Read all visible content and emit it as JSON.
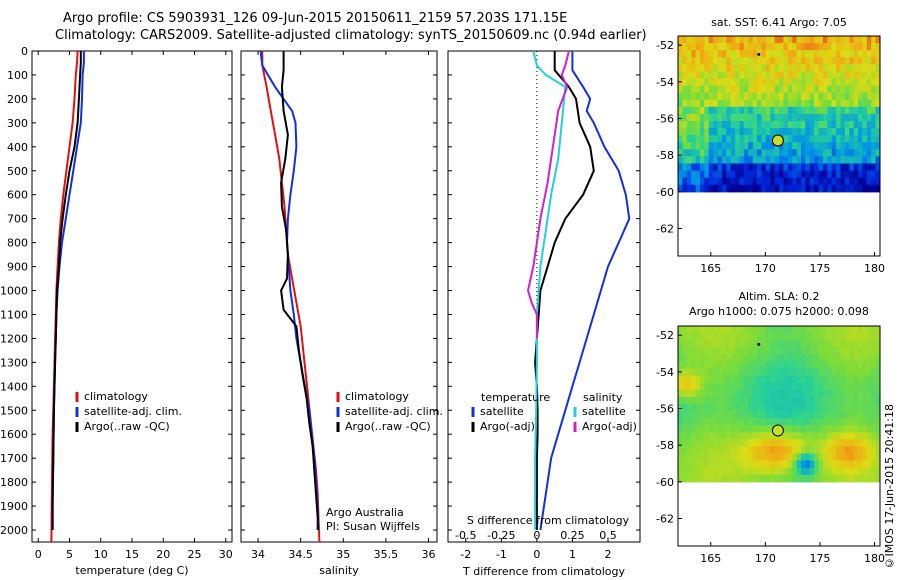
{
  "header": {
    "line1": "Argo profile: CS 5903931_126 09-Jun-2015 20150611_2159 57.203S 171.15E",
    "line2": "Climatology: CARS2009. Satellite-adjusted climatology: synTS_20150609.nc (0.94d earlier)"
  },
  "credit": "©IMOS 17-Jun-2015 20:41:18",
  "colors": {
    "climatology": "#e01010",
    "satellite": "#1030e0",
    "argo": "#000000",
    "sal_satellite": "#20d0e0",
    "sal_argo": "#d020d0"
  },
  "chart_data": [
    {
      "type": "line",
      "id": "temperature",
      "xlabel": "temperature (deg C)",
      "ylabel": "",
      "xlim": [
        -1,
        31
      ],
      "ylim": [
        2050,
        0
      ],
      "xticks": [
        0,
        5,
        10,
        15,
        20,
        25,
        30
      ],
      "yticks": [
        0,
        100,
        200,
        300,
        400,
        500,
        600,
        700,
        800,
        900,
        1000,
        1100,
        1200,
        1300,
        1400,
        1500,
        1600,
        1700,
        1800,
        1900,
        2000
      ],
      "legend": [
        "climatology",
        "satellite-adj. clim.",
        "Argo(..raw -QC)"
      ],
      "series": [
        {
          "name": "climatology",
          "color": "#e01010",
          "points": [
            [
              6.3,
              0
            ],
            [
              6.2,
              50
            ],
            [
              6.0,
              100
            ],
            [
              5.8,
              200
            ],
            [
              5.5,
              300
            ],
            [
              5.0,
              400
            ],
            [
              4.5,
              500
            ],
            [
              4.0,
              600
            ],
            [
              3.6,
              700
            ],
            [
              3.3,
              800
            ],
            [
              3.1,
              900
            ],
            [
              2.9,
              1000
            ],
            [
              2.8,
              1100
            ],
            [
              2.7,
              1200
            ],
            [
              2.6,
              1300
            ],
            [
              2.5,
              1400
            ],
            [
              2.4,
              1500
            ],
            [
              2.3,
              1600
            ],
            [
              2.25,
              1700
            ],
            [
              2.2,
              1800
            ],
            [
              2.15,
              1900
            ],
            [
              2.1,
              2050
            ]
          ]
        },
        {
          "name": "satellite-adj. clim.",
          "color": "#1030e0",
          "points": [
            [
              7.3,
              0
            ],
            [
              7.3,
              50
            ],
            [
              7.1,
              100
            ],
            [
              7.0,
              200
            ],
            [
              6.8,
              300
            ],
            [
              6.2,
              400
            ],
            [
              5.6,
              500
            ],
            [
              5.0,
              600
            ],
            [
              4.4,
              700
            ],
            [
              3.8,
              800
            ],
            [
              3.4,
              900
            ],
            [
              3.1,
              1000
            ],
            [
              2.9,
              1100
            ],
            [
              2.8,
              1200
            ],
            [
              2.7,
              1300
            ],
            [
              2.6,
              1400
            ],
            [
              2.5,
              1500
            ],
            [
              2.45,
              1600
            ],
            [
              2.4,
              1700
            ],
            [
              2.35,
              1800
            ],
            [
              2.3,
              1900
            ],
            [
              2.3,
              2000
            ]
          ]
        },
        {
          "name": "Argo(..raw -QC)",
          "color": "#000000",
          "points": [
            [
              6.8,
              0
            ],
            [
              6.8,
              50
            ],
            [
              6.7,
              100
            ],
            [
              6.5,
              200
            ],
            [
              6.3,
              300
            ],
            [
              5.8,
              400
            ],
            [
              5.0,
              500
            ],
            [
              4.4,
              600
            ],
            [
              3.9,
              700
            ],
            [
              3.5,
              800
            ],
            [
              3.3,
              900
            ],
            [
              3.0,
              1000
            ],
            [
              2.9,
              1100
            ],
            [
              2.8,
              1200
            ],
            [
              2.7,
              1300
            ],
            [
              2.6,
              1400
            ],
            [
              2.5,
              1500
            ],
            [
              2.45,
              1600
            ],
            [
              2.4,
              1700
            ],
            [
              2.35,
              1800
            ],
            [
              2.3,
              1900
            ],
            [
              2.3,
              2000
            ]
          ]
        }
      ]
    },
    {
      "type": "line",
      "id": "salinity",
      "xlabel": "salinity",
      "ylabel": "",
      "xlim": [
        33.8,
        36.1
      ],
      "ylim": [
        2050,
        0
      ],
      "xticks": [
        34,
        34.5,
        35,
        35.5,
        36
      ],
      "legend": [
        "climatology",
        "satellite-adj. clim.",
        "Argo(..raw -QC)"
      ],
      "annotation": [
        "Argo Australia",
        "PI: Susan Wijffels"
      ],
      "series": [
        {
          "name": "climatology",
          "color": "#e01010",
          "points": [
            [
              34.05,
              0
            ],
            [
              34.05,
              60
            ],
            [
              34.1,
              150
            ],
            [
              34.15,
              250
            ],
            [
              34.2,
              350
            ],
            [
              34.25,
              450
            ],
            [
              34.28,
              550
            ],
            [
              34.31,
              650
            ],
            [
              34.33,
              750
            ],
            [
              34.35,
              850
            ],
            [
              34.4,
              950
            ],
            [
              34.45,
              1050
            ],
            [
              34.5,
              1150
            ],
            [
              34.53,
              1250
            ],
            [
              34.56,
              1350
            ],
            [
              34.59,
              1450
            ],
            [
              34.62,
              1550
            ],
            [
              34.65,
              1650
            ],
            [
              34.68,
              1750
            ],
            [
              34.7,
              1850
            ],
            [
              34.71,
              1950
            ],
            [
              34.72,
              2050
            ]
          ]
        },
        {
          "name": "satellite-adj. clim.",
          "color": "#1030e0",
          "points": [
            [
              34.03,
              0
            ],
            [
              34.05,
              60
            ],
            [
              34.2,
              150
            ],
            [
              34.4,
              250
            ],
            [
              34.44,
              300
            ],
            [
              34.45,
              400
            ],
            [
              34.42,
              500
            ],
            [
              34.38,
              600
            ],
            [
              34.35,
              700
            ],
            [
              34.34,
              800
            ],
            [
              34.36,
              900
            ],
            [
              34.38,
              1000
            ],
            [
              34.42,
              1100
            ],
            [
              34.45,
              1200
            ],
            [
              34.5,
              1300
            ],
            [
              34.55,
              1400
            ],
            [
              34.6,
              1500
            ],
            [
              34.63,
              1600
            ],
            [
              34.66,
              1700
            ],
            [
              34.68,
              1800
            ],
            [
              34.7,
              1900
            ],
            [
              34.71,
              2000
            ]
          ]
        },
        {
          "name": "Argo(..raw -QC)",
          "color": "#000000",
          "points": [
            [
              34.3,
              0
            ],
            [
              34.3,
              80
            ],
            [
              34.28,
              150
            ],
            [
              34.3,
              250
            ],
            [
              34.35,
              350
            ],
            [
              34.32,
              450
            ],
            [
              34.27,
              550
            ],
            [
              34.28,
              650
            ],
            [
              34.33,
              750
            ],
            [
              34.35,
              850
            ],
            [
              34.34,
              950
            ],
            [
              34.27,
              1000
            ],
            [
              34.3,
              1080
            ],
            [
              34.45,
              1150
            ],
            [
              34.48,
              1250
            ],
            [
              34.52,
              1350
            ],
            [
              34.57,
              1450
            ],
            [
              34.6,
              1550
            ],
            [
              34.64,
              1650
            ],
            [
              34.66,
              1750
            ],
            [
              34.68,
              1850
            ],
            [
              34.7,
              1950
            ],
            [
              34.7,
              2000
            ]
          ]
        }
      ]
    },
    {
      "type": "line",
      "id": "difference",
      "xlabel": "T difference from climatology",
      "xlabel2": "S difference from climatology",
      "xlim": [
        -2.5,
        2.9
      ],
      "ylim": [
        2050,
        0
      ],
      "xticks": [
        -2,
        -1,
        0,
        1,
        2
      ],
      "xticks2_labels": [
        "-0.5",
        "-0.25",
        "0",
        "0.25",
        "0.5"
      ],
      "legend_left_title": "temperature",
      "legend_right_title": "salinity",
      "legend_left": [
        "satellite",
        "Argo(-adj)"
      ],
      "legend_right": [
        "satellite",
        "Argo(-adj)"
      ],
      "series": [
        {
          "name": "T satellite",
          "color": "#1030e0",
          "points": [
            [
              1.0,
              0
            ],
            [
              1.0,
              80
            ],
            [
              1.3,
              150
            ],
            [
              1.5,
              200
            ],
            [
              1.4,
              250
            ],
            [
              1.6,
              300
            ],
            [
              1.9,
              400
            ],
            [
              2.3,
              500
            ],
            [
              2.5,
              600
            ],
            [
              2.6,
              700
            ],
            [
              2.3,
              800
            ],
            [
              2.0,
              900
            ],
            [
              1.8,
              1000
            ],
            [
              1.6,
              1100
            ],
            [
              1.4,
              1200
            ],
            [
              1.2,
              1300
            ],
            [
              1.0,
              1400
            ],
            [
              0.8,
              1500
            ],
            [
              0.6,
              1600
            ],
            [
              0.4,
              1700
            ],
            [
              0.3,
              1800
            ],
            [
              0.2,
              1900
            ],
            [
              0.1,
              2000
            ]
          ]
        },
        {
          "name": "T Argo(-adj)",
          "color": "#000000",
          "points": [
            [
              0.5,
              0
            ],
            [
              0.5,
              80
            ],
            [
              0.9,
              150
            ],
            [
              1.1,
              200
            ],
            [
              1.2,
              300
            ],
            [
              1.5,
              400
            ],
            [
              1.6,
              500
            ],
            [
              1.3,
              600
            ],
            [
              0.8,
              700
            ],
            [
              0.5,
              800
            ],
            [
              0.3,
              900
            ],
            [
              0.1,
              1000
            ],
            [
              0.05,
              1100
            ],
            [
              0.0,
              1200
            ],
            [
              -0.05,
              1300
            ],
            [
              0.0,
              1400
            ],
            [
              0.02,
              1500
            ],
            [
              0.02,
              1600
            ],
            [
              0.0,
              1700
            ],
            [
              0.0,
              1800
            ],
            [
              0.0,
              1900
            ],
            [
              0.0,
              2000
            ]
          ]
        },
        {
          "name": "S satellite",
          "color": "#20d0e0",
          "points": [
            [
              -0.1,
              0
            ],
            [
              0.0,
              60
            ],
            [
              0.25,
              100
            ],
            [
              0.8,
              150
            ],
            [
              0.7,
              300
            ],
            [
              0.6,
              450
            ],
            [
              0.4,
              600
            ],
            [
              0.3,
              700
            ],
            [
              0.2,
              800
            ],
            [
              0.1,
              900
            ],
            [
              0.05,
              1000
            ],
            [
              0.0,
              1100
            ],
            [
              0.0,
              1300
            ],
            [
              -0.02,
              1500
            ],
            [
              -0.05,
              1700
            ],
            [
              -0.05,
              1900
            ],
            [
              -0.05,
              2000
            ]
          ]
        },
        {
          "name": "S Argo(-adj)",
          "color": "#d020d0",
          "points": [
            [
              0.9,
              0
            ],
            [
              0.8,
              60
            ],
            [
              0.7,
              100
            ],
            [
              0.85,
              150
            ],
            [
              0.6,
              250
            ],
            [
              0.5,
              350
            ],
            [
              0.4,
              450
            ],
            [
              0.3,
              550
            ],
            [
              0.1,
              700
            ],
            [
              0.0,
              800
            ],
            [
              -0.1,
              900
            ],
            [
              -0.25,
              1000
            ],
            [
              -0.15,
              1050
            ],
            [
              0.0,
              1100
            ],
            [
              0.0,
              1200
            ]
          ]
        }
      ]
    },
    {
      "type": "heatmap",
      "id": "sst-map",
      "title": "sat. SST: 6.41  Argo: 7.05",
      "xlim": [
        162,
        180.5
      ],
      "ylim": [
        -60.5,
        -51.5
      ],
      "data_ylim": [
        -60,
        -51.5
      ],
      "xticks": [
        165,
        170,
        175,
        180
      ],
      "yticks": [
        -52,
        -54,
        -56,
        -58,
        -60,
        -62
      ],
      "display_ylim": [
        -63.5,
        -51.5
      ],
      "argo_position": [
        171.15,
        -57.2
      ],
      "previous_position": [
        169.4,
        -52.5
      ]
    },
    {
      "type": "heatmap",
      "id": "sla-map",
      "title": "Altim. SLA: 0.2",
      "subtitle": "Argo h1000: 0.075 h2000: 0.098",
      "xlim": [
        162,
        180.5
      ],
      "display_ylim": [
        -63.5,
        -51.5
      ],
      "xticks": [
        165,
        170,
        175,
        180
      ],
      "yticks": [
        -52,
        -54,
        -56,
        -58,
        -60,
        -62
      ],
      "argo_position": [
        171.15,
        -57.2
      ],
      "previous_position": [
        169.4,
        -52.5
      ]
    }
  ]
}
